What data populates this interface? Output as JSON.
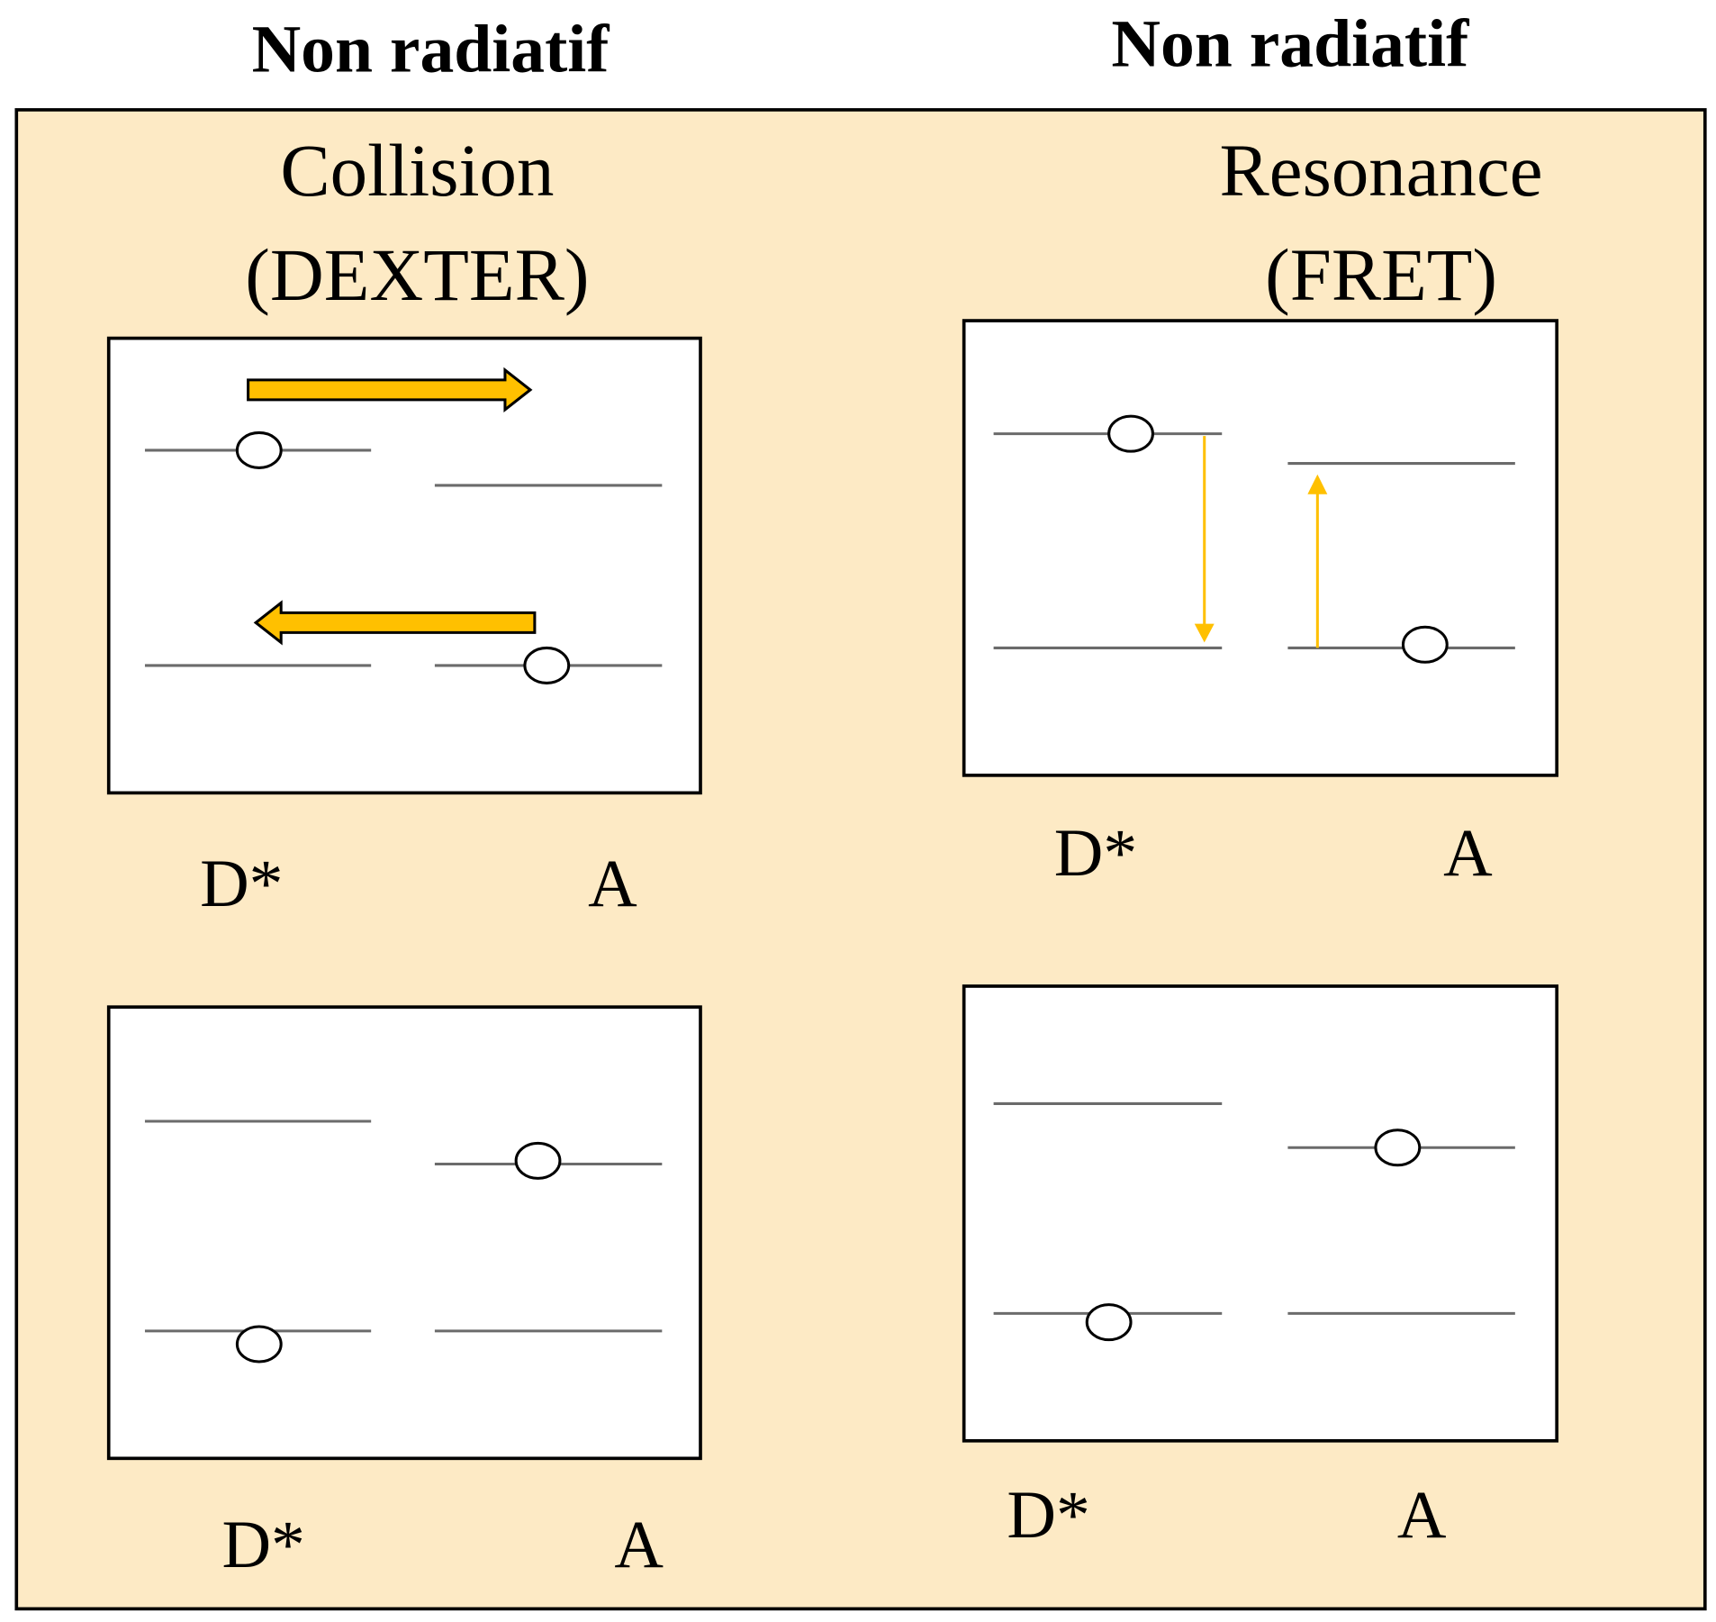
{
  "columns": [
    {
      "header": "Non radiatif",
      "title_line1": "Collision",
      "title_line2": "(DEXTER)",
      "panels": [
        {
          "donor_label": "D*",
          "acceptor_label": "A"
        },
        {
          "donor_label": "D*",
          "acceptor_label": "A"
        }
      ]
    },
    {
      "header": "Non radiatif",
      "title_line1": "Resonance",
      "title_line2": "(FRET)",
      "panels": [
        {
          "donor_label": "D*",
          "acceptor_label": "A"
        },
        {
          "donor_label": "D*",
          "acceptor_label": "A"
        }
      ]
    }
  ]
}
